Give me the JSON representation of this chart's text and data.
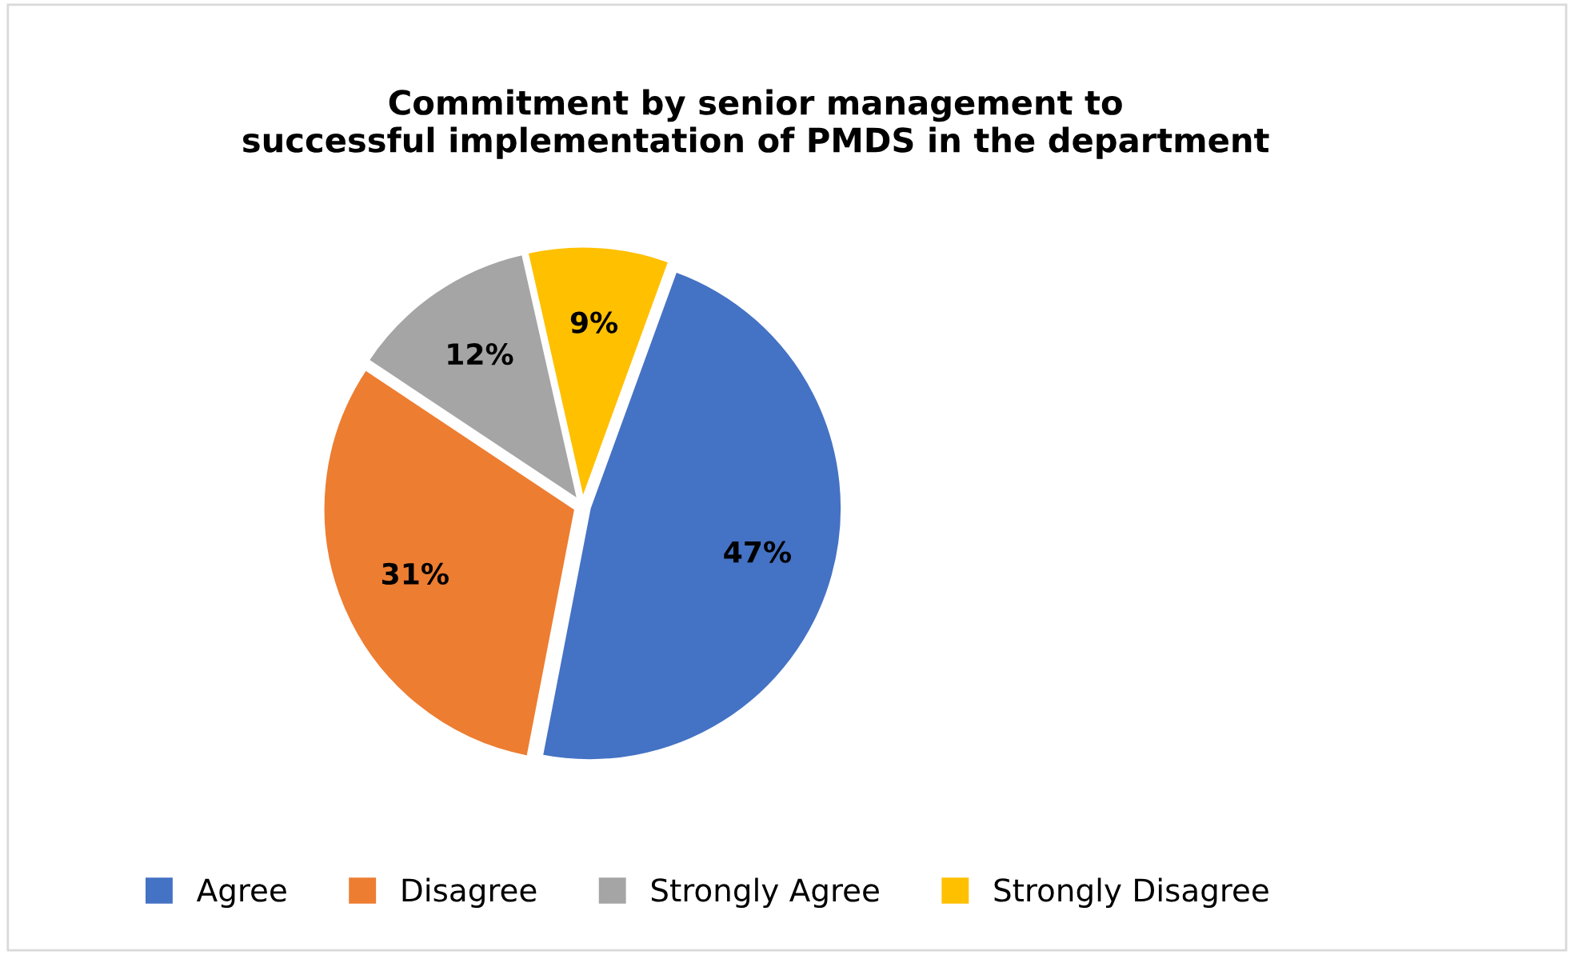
{
  "chart_data": {
    "type": "pie",
    "title": "Commitment by senior management to\nsuccessful implementation of PMDS in the department",
    "categories": [
      "Agree",
      "Disagree",
      "Strongly Agree",
      "Strongly Disagree"
    ],
    "values": [
      47,
      31,
      12,
      9
    ],
    "colors": [
      "#4472c4",
      "#ed7d31",
      "#a5a5a5",
      "#ffc000"
    ],
    "value_labels": [
      "47%",
      "31%",
      "12%",
      "9%"
    ],
    "legend": "bottom"
  }
}
